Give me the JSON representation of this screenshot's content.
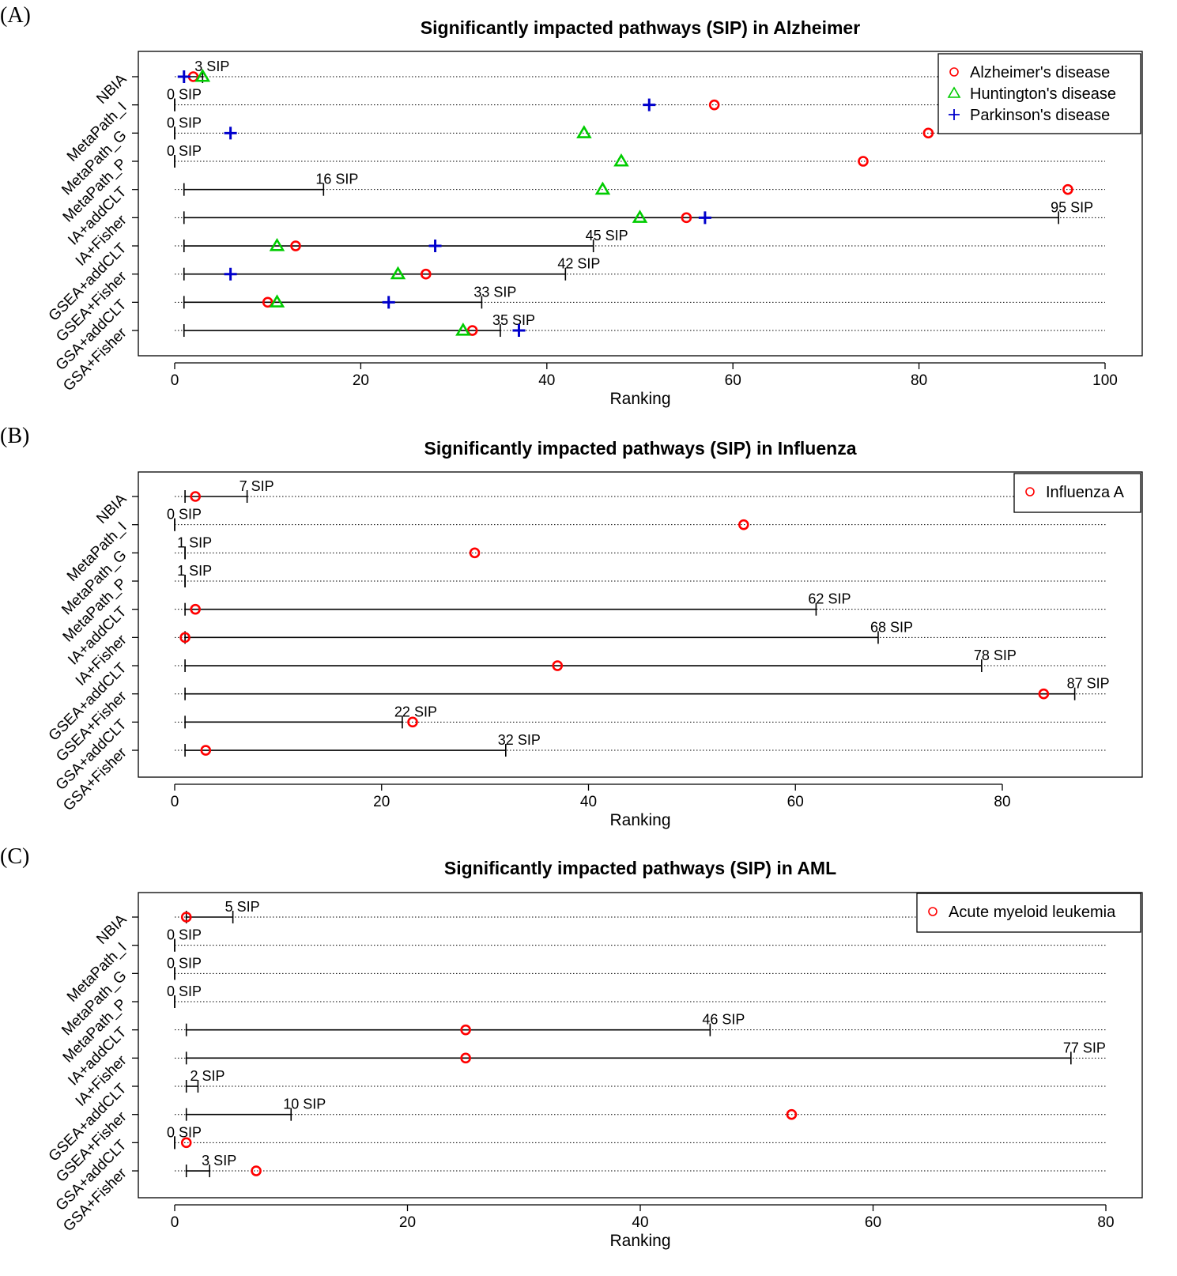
{
  "chart_data": [
    {
      "type": "scatter",
      "panel_label": "(A)",
      "title": "Significantly impacted pathways (SIP) in Alzheimer",
      "xlabel": "Ranking",
      "xlim": [
        0,
        100
      ],
      "xticks": [
        0,
        20,
        40,
        60,
        80,
        100
      ],
      "methods": [
        "NBIA",
        "MetaPath_I",
        "MetaPath_G",
        "MetaPath_P",
        "IA+addCLT",
        "IA+Fisher",
        "GSEA+addCLT",
        "GSEA+Fisher",
        "GSA+addCLT",
        "GSA+Fisher"
      ],
      "sip": [
        3,
        0,
        0,
        0,
        16,
        95,
        45,
        42,
        33,
        35
      ],
      "sip_labels": [
        "3 SIP",
        "0 SIP",
        "0 SIP",
        "0 SIP",
        "16 SIP",
        "95 SIP",
        "45 SIP",
        "42 SIP",
        "33 SIP",
        "35 SIP"
      ],
      "legend_position": "top-right",
      "series": [
        {
          "name": "Alzheimer's disease",
          "marker": "circle",
          "color": "#ff0000",
          "values": [
            2,
            58,
            81,
            74,
            96,
            55,
            13,
            27,
            10,
            32
          ]
        },
        {
          "name": "Huntington's disease",
          "marker": "triangle",
          "color": "#00cc00",
          "values": [
            3,
            null,
            44,
            48,
            46,
            50,
            11,
            24,
            11,
            31
          ]
        },
        {
          "name": "Parkinson's disease",
          "marker": "plus",
          "color": "#0000cc",
          "values": [
            1,
            51,
            6,
            null,
            null,
            57,
            28,
            6,
            23,
            37
          ]
        }
      ]
    },
    {
      "type": "scatter",
      "panel_label": "(B)",
      "title": "Significantly impacted pathways (SIP) in Influenza",
      "xlabel": "Ranking",
      "xlim": [
        0,
        90
      ],
      "xticks": [
        0,
        20,
        40,
        60,
        80
      ],
      "methods": [
        "NBIA",
        "MetaPath_I",
        "MetaPath_G",
        "MetaPath_P",
        "IA+addCLT",
        "IA+Fisher",
        "GSEA+addCLT",
        "GSEA+Fisher",
        "GSA+addCLT",
        "GSA+Fisher"
      ],
      "sip": [
        7,
        0,
        1,
        1,
        62,
        68,
        78,
        87,
        22,
        32
      ],
      "sip_labels": [
        "7 SIP",
        "0 SIP",
        "1 SIP",
        "1 SIP",
        "62 SIP",
        "68 SIP",
        "78 SIP",
        "87 SIP",
        "22 SIP",
        "32 SIP"
      ],
      "legend_position": "top-right",
      "series": [
        {
          "name": "Influenza A",
          "marker": "circle",
          "color": "#ff0000",
          "values": [
            2,
            55,
            29,
            null,
            2,
            1,
            37,
            84,
            23,
            3
          ]
        }
      ]
    },
    {
      "type": "scatter",
      "panel_label": "(C)",
      "title": "Significantly impacted pathways (SIP) in AML",
      "xlabel": "Ranking",
      "xlim": [
        0,
        80
      ],
      "xticks": [
        0,
        20,
        40,
        60,
        80
      ],
      "methods": [
        "NBIA",
        "MetaPath_I",
        "MetaPath_G",
        "MetaPath_P",
        "IA+addCLT",
        "IA+Fisher",
        "GSEA+addCLT",
        "GSEA+Fisher",
        "GSA+addCLT",
        "GSA+Fisher"
      ],
      "sip": [
        5,
        0,
        0,
        0,
        46,
        77,
        2,
        10,
        0,
        3
      ],
      "sip_labels": [
        "5 SIP",
        "0 SIP",
        "0 SIP",
        "0 SIP",
        "46 SIP",
        "77 SIP",
        "2 SIP",
        "10 SIP",
        "0 SIP",
        "3 SIP"
      ],
      "legend_position": "top-right",
      "series": [
        {
          "name": "Acute myeloid leukemia",
          "marker": "circle",
          "color": "#ff0000",
          "values": [
            1,
            null,
            null,
            null,
            25,
            25,
            null,
            53,
            1,
            7
          ]
        }
      ]
    }
  ]
}
